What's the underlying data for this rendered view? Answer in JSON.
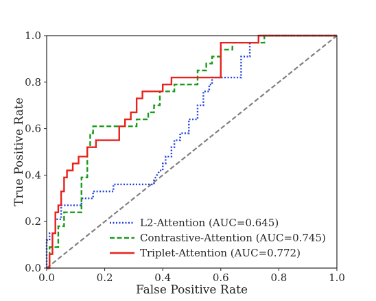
{
  "chart_data": {
    "type": "line",
    "title": "",
    "xlabel": "False Positive Rate",
    "ylabel": "True Positive Rate",
    "xlim": [
      0,
      1
    ],
    "ylim": [
      0,
      1
    ],
    "xticks": [
      "0.0",
      "0.2",
      "0.4",
      "0.6",
      "0.8",
      "1.0"
    ],
    "yticks": [
      "0.0",
      "0.2",
      "0.4",
      "0.6",
      "0.8",
      "1.0"
    ],
    "grid": false,
    "legend_position": "lower-right",
    "series": [
      {
        "name": "L2-Attention (AUC=0.645)",
        "color": "#1f3fe0",
        "dash": "dotted",
        "x": [
          0.0,
          0.0,
          0.01,
          0.01,
          0.03,
          0.03,
          0.05,
          0.05,
          0.12,
          0.12,
          0.16,
          0.16,
          0.23,
          0.23,
          0.37,
          0.37,
          0.38,
          0.39,
          0.4,
          0.4,
          0.41,
          0.41,
          0.43,
          0.43,
          0.44,
          0.44,
          0.46,
          0.46,
          0.49,
          0.49,
          0.52,
          0.52,
          0.54,
          0.54,
          0.56,
          0.56,
          0.57,
          0.57,
          0.6,
          0.6,
          0.67,
          0.67,
          0.7,
          0.7,
          0.73,
          0.73,
          1.0
        ],
        "y": [
          0.0,
          0.12,
          0.12,
          0.15,
          0.15,
          0.21,
          0.21,
          0.27,
          0.27,
          0.3,
          0.3,
          0.33,
          0.33,
          0.36,
          0.36,
          0.38,
          0.4,
          0.42,
          0.42,
          0.45,
          0.45,
          0.48,
          0.48,
          0.52,
          0.52,
          0.55,
          0.55,
          0.58,
          0.58,
          0.64,
          0.64,
          0.7,
          0.7,
          0.76,
          0.76,
          0.79,
          0.79,
          0.82,
          0.82,
          0.82,
          0.82,
          0.91,
          0.91,
          0.97,
          0.97,
          1.0,
          1.0
        ]
      },
      {
        "name": "Contrastive-Attention (AUC=0.745)",
        "color": "#1a9a1a",
        "dash": "dashed",
        "x": [
          0.0,
          0.01,
          0.01,
          0.04,
          0.04,
          0.06,
          0.06,
          0.12,
          0.12,
          0.14,
          0.14,
          0.15,
          0.15,
          0.16,
          0.16,
          0.25,
          0.25,
          0.31,
          0.31,
          0.35,
          0.35,
          0.37,
          0.37,
          0.39,
          0.39,
          0.44,
          0.44,
          0.52,
          0.52,
          0.55,
          0.55,
          0.57,
          0.57,
          0.6,
          0.6,
          0.64,
          0.64,
          0.7,
          0.7,
          0.75,
          0.75,
          0.79,
          0.79,
          1.0
        ],
        "y": [
          0.0,
          0.0,
          0.09,
          0.09,
          0.18,
          0.18,
          0.24,
          0.24,
          0.39,
          0.39,
          0.52,
          0.52,
          0.58,
          0.58,
          0.61,
          0.61,
          0.61,
          0.61,
          0.64,
          0.64,
          0.67,
          0.67,
          0.7,
          0.7,
          0.76,
          0.76,
          0.79,
          0.79,
          0.85,
          0.85,
          0.88,
          0.88,
          0.91,
          0.91,
          0.94,
          0.94,
          0.97,
          0.97,
          0.97,
          0.97,
          1.0,
          1.0,
          1.0,
          1.0
        ]
      },
      {
        "name": "Triplet-Attention (AUC=0.772)",
        "color": "#e8211d",
        "dash": "solid",
        "x": [
          0.0,
          0.01,
          0.01,
          0.02,
          0.02,
          0.03,
          0.03,
          0.04,
          0.04,
          0.05,
          0.05,
          0.06,
          0.06,
          0.07,
          0.07,
          0.09,
          0.09,
          0.11,
          0.11,
          0.14,
          0.14,
          0.17,
          0.17,
          0.25,
          0.25,
          0.27,
          0.27,
          0.29,
          0.29,
          0.31,
          0.31,
          0.33,
          0.33,
          0.4,
          0.4,
          0.43,
          0.43,
          0.6,
          0.6,
          0.63,
          0.63,
          0.73,
          0.73,
          1.0
        ],
        "y": [
          0.0,
          0.0,
          0.06,
          0.06,
          0.15,
          0.15,
          0.24,
          0.24,
          0.27,
          0.27,
          0.33,
          0.33,
          0.39,
          0.39,
          0.42,
          0.42,
          0.45,
          0.45,
          0.48,
          0.48,
          0.52,
          0.52,
          0.55,
          0.55,
          0.61,
          0.61,
          0.64,
          0.64,
          0.67,
          0.67,
          0.73,
          0.73,
          0.76,
          0.76,
          0.79,
          0.79,
          0.82,
          0.82,
          0.97,
          0.97,
          0.97,
          0.97,
          1.0,
          1.0
        ]
      },
      {
        "color": "#808080",
        "dash": "dashed",
        "x": [
          0,
          1
        ],
        "y": [
          0,
          1
        ]
      }
    ]
  }
}
